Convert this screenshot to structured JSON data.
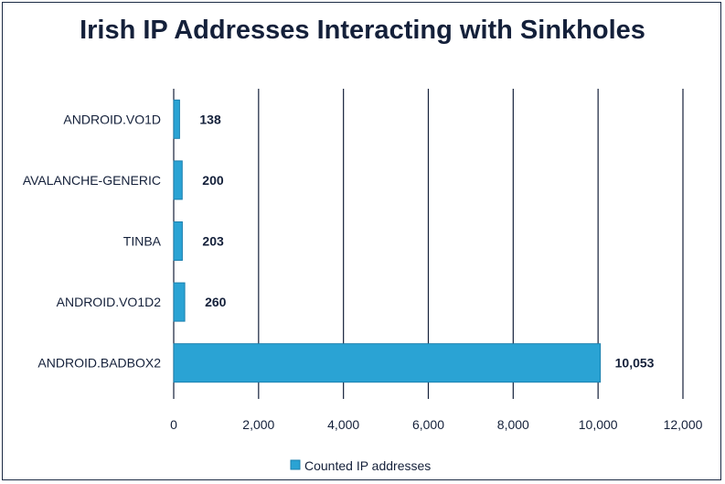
{
  "chart_data": {
    "type": "bar",
    "orientation": "horizontal",
    "title": "Irish IP Addresses Interacting with Sinkholes",
    "categories": [
      "ANDROID.VO1D",
      "AVALANCHE-GENERIC",
      "TINBA",
      "ANDROID.VO1D2",
      "ANDROID.BADBOX2"
    ],
    "series": [
      {
        "name": "Counted IP addresses",
        "values": [
          138,
          200,
          203,
          260,
          10053
        ],
        "data_labels": [
          "138",
          "200",
          "203",
          "260",
          "10,053"
        ],
        "color": "#2aa3d4"
      }
    ],
    "xlim": [
      0,
      12000
    ],
    "x_ticks": [
      0,
      2000,
      4000,
      6000,
      8000,
      10000,
      12000
    ],
    "x_tick_labels": [
      "0",
      "2,000",
      "4,000",
      "6,000",
      "8,000",
      "10,000",
      "12,000"
    ],
    "grid": "vertical",
    "legend": "bottom-center",
    "colors": {
      "bar": "#2aa3d4",
      "bar_edge": "#1a7fae",
      "grid": "#14203a",
      "text": "#14203a"
    }
  }
}
